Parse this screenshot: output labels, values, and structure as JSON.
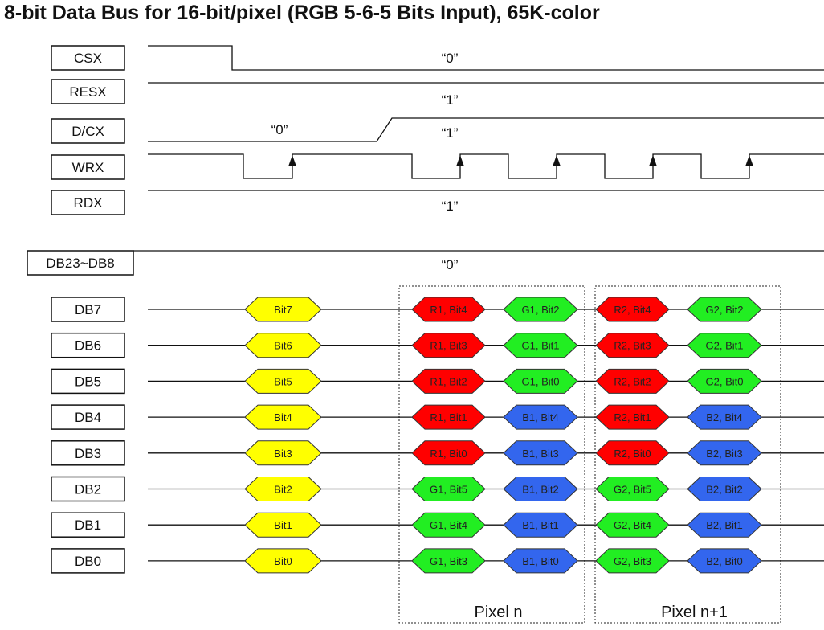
{
  "title": "8-bit Data Bus for 16-bit/pixel (RGB 5-6-5 Bits Input), 65K-color",
  "control_signals": [
    {
      "label": "CSX",
      "level_text": "“0”"
    },
    {
      "label": "RESX",
      "level_text": "“1”"
    },
    {
      "label": "D/CX",
      "level_text_low": "“0”",
      "level_text": "“1”"
    },
    {
      "label": "WRX"
    },
    {
      "label": "RDX",
      "level_text": "“1”"
    }
  ],
  "unused_bus": {
    "label": "DB23~DB8",
    "level_text": "“0”"
  },
  "data_bus": [
    {
      "label": "DB7",
      "cells": [
        "Bit7",
        "R1, Bit4",
        "G1, Bit2",
        "R2, Bit4",
        "G2, Bit2"
      ]
    },
    {
      "label": "DB6",
      "cells": [
        "Bit6",
        "R1, Bit3",
        "G1, Bit1",
        "R2, Bit3",
        "G2, Bit1"
      ]
    },
    {
      "label": "DB5",
      "cells": [
        "Bit5",
        "R1, Bit2",
        "G1, Bit0",
        "R2, Bit2",
        "G2, Bit0"
      ]
    },
    {
      "label": "DB4",
      "cells": [
        "Bit4",
        "R1, Bit1",
        "B1, Bit4",
        "R2, Bit1",
        "B2, Bit4"
      ]
    },
    {
      "label": "DB3",
      "cells": [
        "Bit3",
        "R1, Bit0",
        "B1, Bit3",
        "R2, Bit0",
        "B2, Bit3"
      ]
    },
    {
      "label": "DB2",
      "cells": [
        "Bit2",
        "G1, Bit5",
        "B1, Bit2",
        "G2, Bit5",
        "B2, Bit2"
      ]
    },
    {
      "label": "DB1",
      "cells": [
        "Bit1",
        "G1, Bit4",
        "B1, Bit1",
        "G2, Bit4",
        "B2, Bit1"
      ]
    },
    {
      "label": "DB0",
      "cells": [
        "Bit0",
        "G1, Bit3",
        "B1, Bit0",
        "G2, Bit3",
        "B2, Bit0"
      ]
    }
  ],
  "pixel_groups": [
    "Pixel n",
    "Pixel n+1"
  ],
  "colors": {
    "R": "#ff0000",
    "G": "#22ee22",
    "B": "#3366ee",
    "command": "#ffff00",
    "line": "#111111"
  }
}
